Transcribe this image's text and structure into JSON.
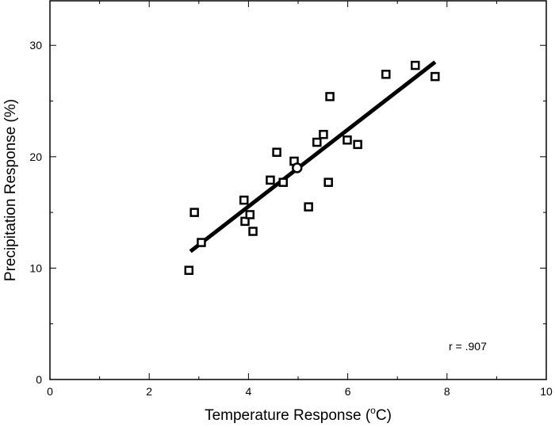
{
  "chart_data": {
    "type": "scatter",
    "title": "",
    "xlabel": "Temperature Response (",
    "xlabel_sup": "o",
    "xlabel_tail": "C)",
    "ylabel": "Precipitation Response (%)",
    "xlim": [
      0,
      10
    ],
    "ylim": [
      0,
      34
    ],
    "xticks": [
      0,
      2,
      4,
      6,
      8,
      10
    ],
    "yticks": [
      0,
      10,
      20,
      30
    ],
    "grid": false,
    "annotation": "r = .907",
    "points": [
      [
        2.8,
        9.8
      ],
      [
        2.91,
        15.0
      ],
      [
        3.05,
        12.3
      ],
      [
        3.91,
        16.1
      ],
      [
        3.93,
        14.2
      ],
      [
        4.03,
        14.8
      ],
      [
        4.09,
        13.3
      ],
      [
        4.44,
        17.9
      ],
      [
        4.57,
        20.4
      ],
      [
        4.7,
        17.7
      ],
      [
        4.92,
        19.6
      ],
      [
        5.21,
        15.5
      ],
      [
        5.38,
        21.3
      ],
      [
        5.51,
        22.0
      ],
      [
        5.61,
        17.7
      ],
      [
        5.64,
        25.4
      ],
      [
        5.99,
        21.5
      ],
      [
        6.2,
        21.1
      ],
      [
        6.77,
        27.4
      ],
      [
        7.36,
        28.2
      ],
      [
        7.76,
        27.2
      ]
    ],
    "mean_point": [
      4.98,
      19.0
    ],
    "fit_line": [
      [
        2.83,
        11.5
      ],
      [
        7.76,
        28.5
      ]
    ]
  }
}
